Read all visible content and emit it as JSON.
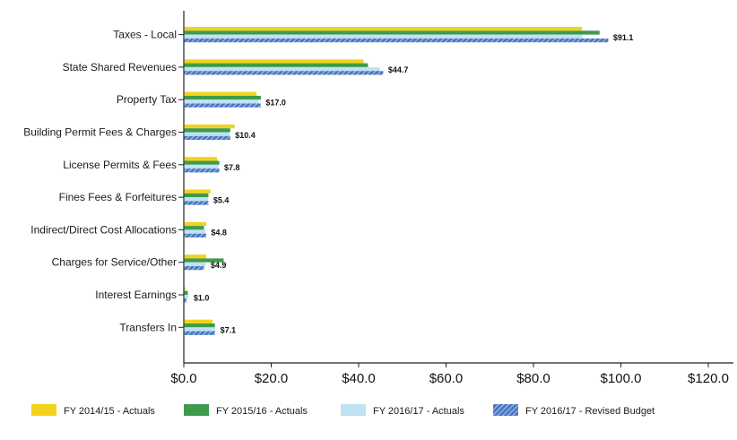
{
  "chart_data": {
    "type": "bar",
    "orientation": "horizontal",
    "categories": [
      "Taxes - Local",
      "State Shared Revenues",
      "Property Tax",
      "Building Permit Fees & Charges",
      "License Permits & Fees",
      "Fines Fees & Forfeitures",
      "Indirect/Direct Cost Allocations",
      "Charges for Service/Other",
      "Interest Earnings",
      "Transfers In"
    ],
    "series": [
      {
        "name": "FY 2014/15 - Actuals",
        "color": "#f2d21c",
        "pattern": "solid",
        "values": [
          91.0,
          41.0,
          16.5,
          11.5,
          7.5,
          6.0,
          5.0,
          5.0,
          0.3,
          6.5
        ]
      },
      {
        "name": "FY 2015/16 - Actuals",
        "color": "#3f9a4c",
        "pattern": "solid",
        "values": [
          95.0,
          42.0,
          17.5,
          10.5,
          8.0,
          5.5,
          4.5,
          9.0,
          0.8,
          7.0
        ]
      },
      {
        "name": "FY 2016/17 - Actuals",
        "color": "#bfe3f3",
        "pattern": "solid",
        "values": [
          91.1,
          44.7,
          17.0,
          10.4,
          7.8,
          5.4,
          4.8,
          4.9,
          1.0,
          7.1
        ]
      },
      {
        "name": "FY 2016/17 - Revised Budget",
        "color": "#4a78c4",
        "pattern": "hatched",
        "values": [
          97.0,
          45.5,
          17.5,
          10.5,
          8.0,
          5.5,
          5.0,
          4.5,
          0.5,
          7.0
        ]
      }
    ],
    "data_labels": [
      "$91.1",
      "$44.7",
      "$17.0",
      "$10.4",
      "$7.8",
      "$5.4",
      "$4.8",
      "$4.9",
      "$1.0",
      "$7.1"
    ],
    "x_ticks": [
      "$0.0",
      "$20.0",
      "$40.0",
      "$60.0",
      "$80.0",
      "$100.0",
      "$120.0"
    ],
    "xlim": [
      0,
      120
    ],
    "grid": false,
    "legend_position": "bottom",
    "title": "",
    "xlabel": "",
    "ylabel": ""
  }
}
